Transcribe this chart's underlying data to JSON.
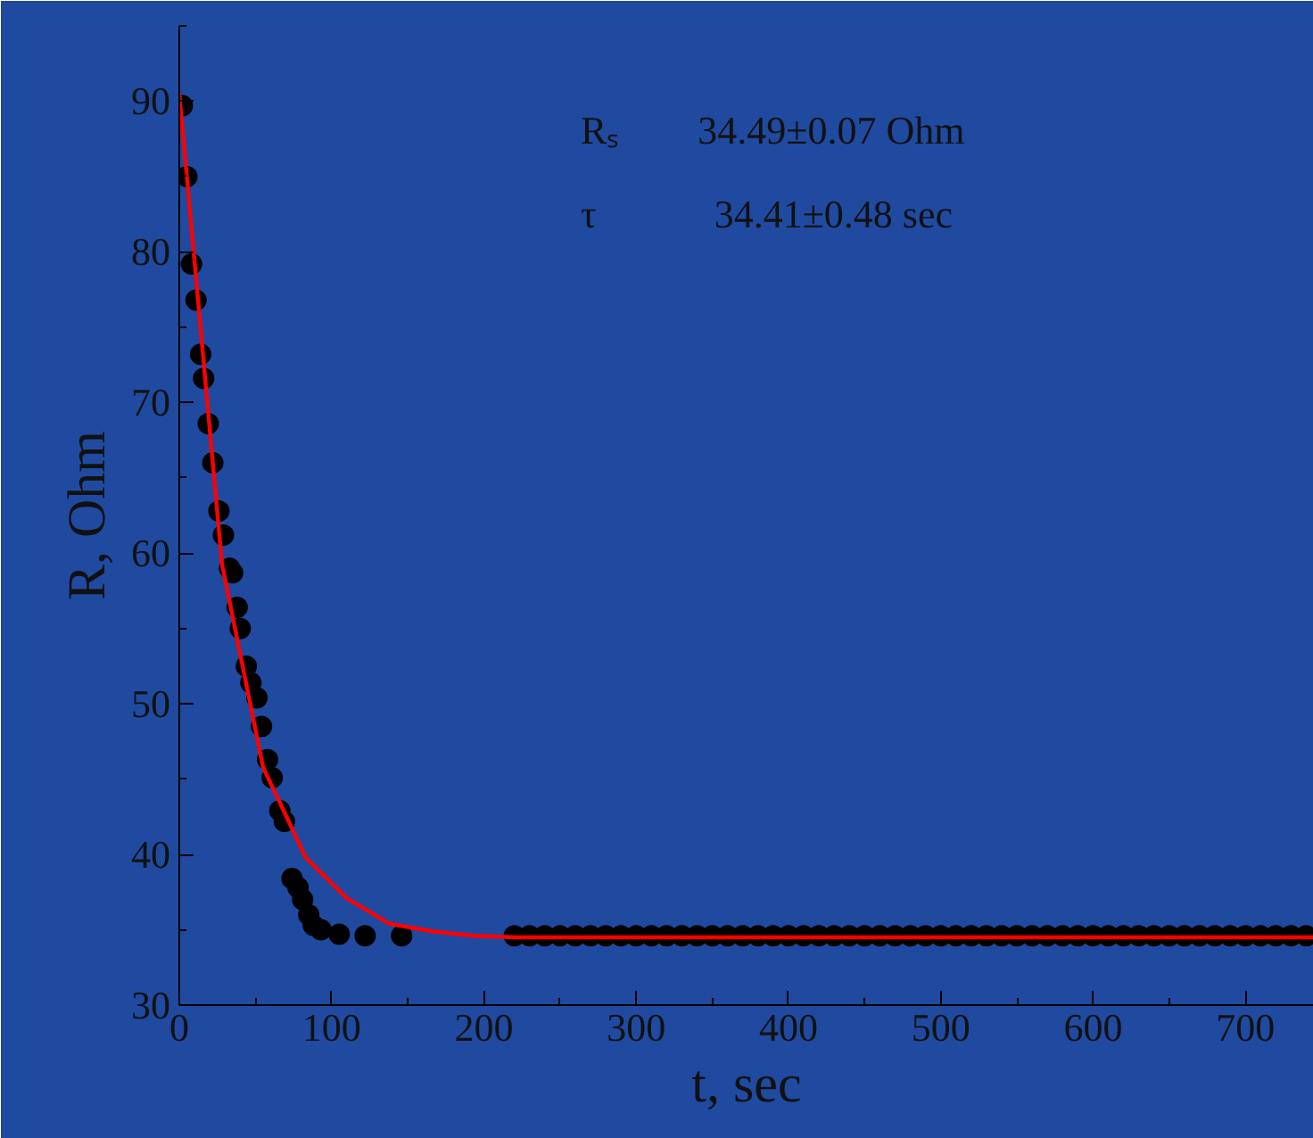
{
  "chart_data": {
    "type": "scatter",
    "xlabel": "t, sec",
    "ylabel": "R, Ohm",
    "xlim": [
      0,
      745
    ],
    "ylim": [
      30,
      95
    ],
    "xticks": [
      0,
      100,
      200,
      300,
      400,
      500,
      600,
      700
    ],
    "yticks": [
      30,
      40,
      50,
      60,
      70,
      80,
      90
    ],
    "grid": false,
    "marker": "circle",
    "annotations": [
      "Rₛ  34.49±0.07 Ohm",
      "τ   34.41±0.48 sec"
    ],
    "series": [
      {
        "color": "#000000",
        "x": [
          2,
          5,
          8,
          11,
          14,
          16,
          19,
          22,
          26,
          29,
          33,
          35,
          38,
          40,
          44,
          47,
          51,
          54,
          58,
          61,
          66,
          69,
          74,
          78,
          81,
          85,
          88,
          93,
          105,
          122,
          146,
          220,
          230,
          240,
          250,
          260,
          270,
          280,
          290,
          300,
          310,
          320,
          330,
          340,
          350,
          360,
          370,
          380,
          390,
          400,
          410,
          420,
          430,
          440,
          450,
          460,
          470,
          480,
          490,
          500,
          510,
          520,
          530,
          540,
          550,
          560,
          570,
          580,
          590,
          600,
          610,
          620,
          630,
          640,
          650,
          660,
          670,
          680,
          690,
          700,
          710,
          720,
          730,
          740
        ],
        "values": [
          89.7,
          85,
          79.2,
          76.8,
          73.2,
          71.6,
          68.6,
          66,
          62.8,
          61.2,
          59,
          58.7,
          56.4,
          55,
          52.5,
          51.4,
          50.4,
          48.5,
          46.3,
          45.1,
          42.9,
          42.2,
          38.4,
          37.8,
          37,
          36,
          35.3,
          35,
          34.7,
          34.6,
          34.6,
          34.6,
          34.6,
          34.6,
          34.6,
          34.6,
          34.6,
          34.6,
          34.6,
          34.6,
          34.6,
          34.6,
          34.6,
          34.6,
          34.6,
          34.6,
          34.6,
          34.6,
          34.6,
          34.6,
          34.6,
          34.6,
          34.6,
          34.6,
          34.6,
          34.6,
          34.6,
          34.6,
          34.6,
          34.6,
          34.6,
          34.6,
          34.6,
          34.6,
          34.6,
          34.6,
          34.6,
          34.6,
          34.6,
          34.6,
          34.6,
          34.6,
          34.6,
          34.6,
          34.6,
          34.6,
          34.6,
          34.6,
          34.6,
          34.6,
          34.6,
          34.6,
          34.6,
          34.6
        ]
      },
      {
        "type": "line",
        "color": "#ff0000",
        "line_style": "solid",
        "marker": "none",
        "x": [
          0,
          28,
          55,
          83,
          110,
          138,
          166,
          193,
          221,
          745
        ],
        "values": [
          90.5,
          59.3,
          45.8,
          39.8,
          37.1,
          35.4,
          34.9,
          34.6,
          34.5,
          34.5
        ]
      }
    ]
  }
}
